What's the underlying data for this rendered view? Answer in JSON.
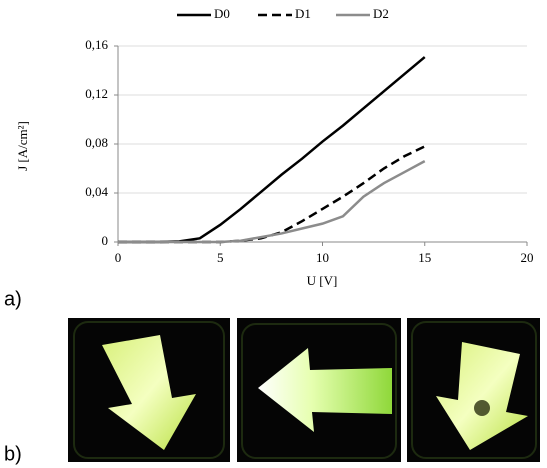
{
  "chart_data": {
    "type": "line",
    "x_label": "U [V]",
    "y_label": "J [A/cm²]",
    "x": [
      0,
      1,
      2,
      3,
      4,
      5,
      6,
      7,
      8,
      9,
      10,
      11,
      12,
      13,
      14,
      15
    ],
    "series": [
      {
        "name": "D0",
        "color": "#000000",
        "style": "solid",
        "values": [
          0,
          0,
          0,
          0.0005,
          0.003,
          0.014,
          0.027,
          0.041,
          0.055,
          0.068,
          0.082,
          0.095,
          0.109,
          0.123,
          0.137,
          0.151
        ]
      },
      {
        "name": "D1",
        "color": "#000000",
        "style": "dashed",
        "values": [
          0,
          0,
          0,
          0,
          0,
          0,
          0.001,
          0.003,
          0.008,
          0.017,
          0.027,
          0.037,
          0.048,
          0.06,
          0.07,
          0.078
        ]
      },
      {
        "name": "D2",
        "color": "#8c8c8c",
        "style": "solid",
        "values": [
          0,
          0,
          0,
          0,
          0,
          0,
          0.001,
          0.004,
          0.007,
          0.011,
          0.015,
          0.021,
          0.037,
          0.048,
          0.057,
          0.066
        ]
      }
    ],
    "xlim": [
      0,
      20
    ],
    "xticks": [
      0,
      5,
      10,
      15,
      20
    ],
    "ylim": [
      0,
      0.16
    ],
    "yticks": [
      0,
      {
        "value": 0.04,
        "label": "0,04"
      },
      {
        "value": 0.08,
        "label": "0,08"
      },
      {
        "value": 0.12,
        "label": "0,12"
      },
      {
        "value": 0.16,
        "label": "0,16"
      }
    ],
    "grid": true,
    "legend": "top"
  },
  "panel_labels": [
    "a)",
    "b)"
  ]
}
